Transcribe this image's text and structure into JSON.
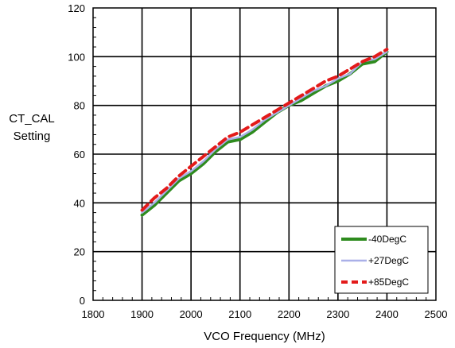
{
  "chart_data": {
    "type": "line",
    "title": "",
    "xlabel": "VCO Frequency (MHz)",
    "ylabel_line1": "CT_CAL",
    "ylabel_line2": "Setting",
    "xlim": [
      1800,
      2500
    ],
    "ylim": [
      0,
      120
    ],
    "xticks": [
      1800,
      1900,
      2000,
      2100,
      2200,
      2300,
      2400,
      2500
    ],
    "yticks": [
      0,
      20,
      40,
      60,
      80,
      100,
      120
    ],
    "grid": true,
    "legend_position": "bottom-right",
    "series": [
      {
        "name": "-40DegC",
        "color": "#2e8b1e",
        "style": "solid",
        "x": [
          1900,
          1925,
          1950,
          1975,
          2000,
          2025,
          2050,
          2075,
          2100,
          2125,
          2150,
          2175,
          2200,
          2225,
          2250,
          2275,
          2300,
          2325,
          2350,
          2375,
          2400
        ],
        "y": [
          35,
          39,
          44,
          49,
          52,
          56,
          61,
          65,
          66,
          69,
          73,
          77,
          80,
          82,
          85,
          88,
          90,
          93,
          97,
          98,
          102
        ]
      },
      {
        "name": "+27DegC",
        "color": "#aab0e8",
        "style": "solid",
        "x": [
          1900,
          1925,
          1950,
          1975,
          2000,
          2025,
          2050,
          2075,
          2100,
          2125,
          2150,
          2175,
          2200,
          2225,
          2250,
          2275,
          2300,
          2325,
          2350,
          2375,
          2400
        ],
        "y": [
          36,
          40,
          45,
          50,
          53,
          57,
          62,
          66,
          67,
          70,
          74,
          77,
          80,
          83,
          86,
          88,
          91,
          93,
          98,
          99,
          102
        ]
      },
      {
        "name": "+85DegC",
        "color": "#e31a1a",
        "style": "dashed",
        "x": [
          1900,
          1925,
          1950,
          1975,
          2000,
          2025,
          2050,
          2075,
          2100,
          2125,
          2150,
          2175,
          2200,
          2225,
          2250,
          2275,
          2300,
          2325,
          2350,
          2375,
          2400
        ],
        "y": [
          37,
          42,
          46,
          51,
          55,
          59,
          63,
          67,
          69,
          72,
          75,
          78,
          81,
          84,
          87,
          90,
          92,
          95,
          98,
          100,
          103
        ]
      }
    ]
  }
}
